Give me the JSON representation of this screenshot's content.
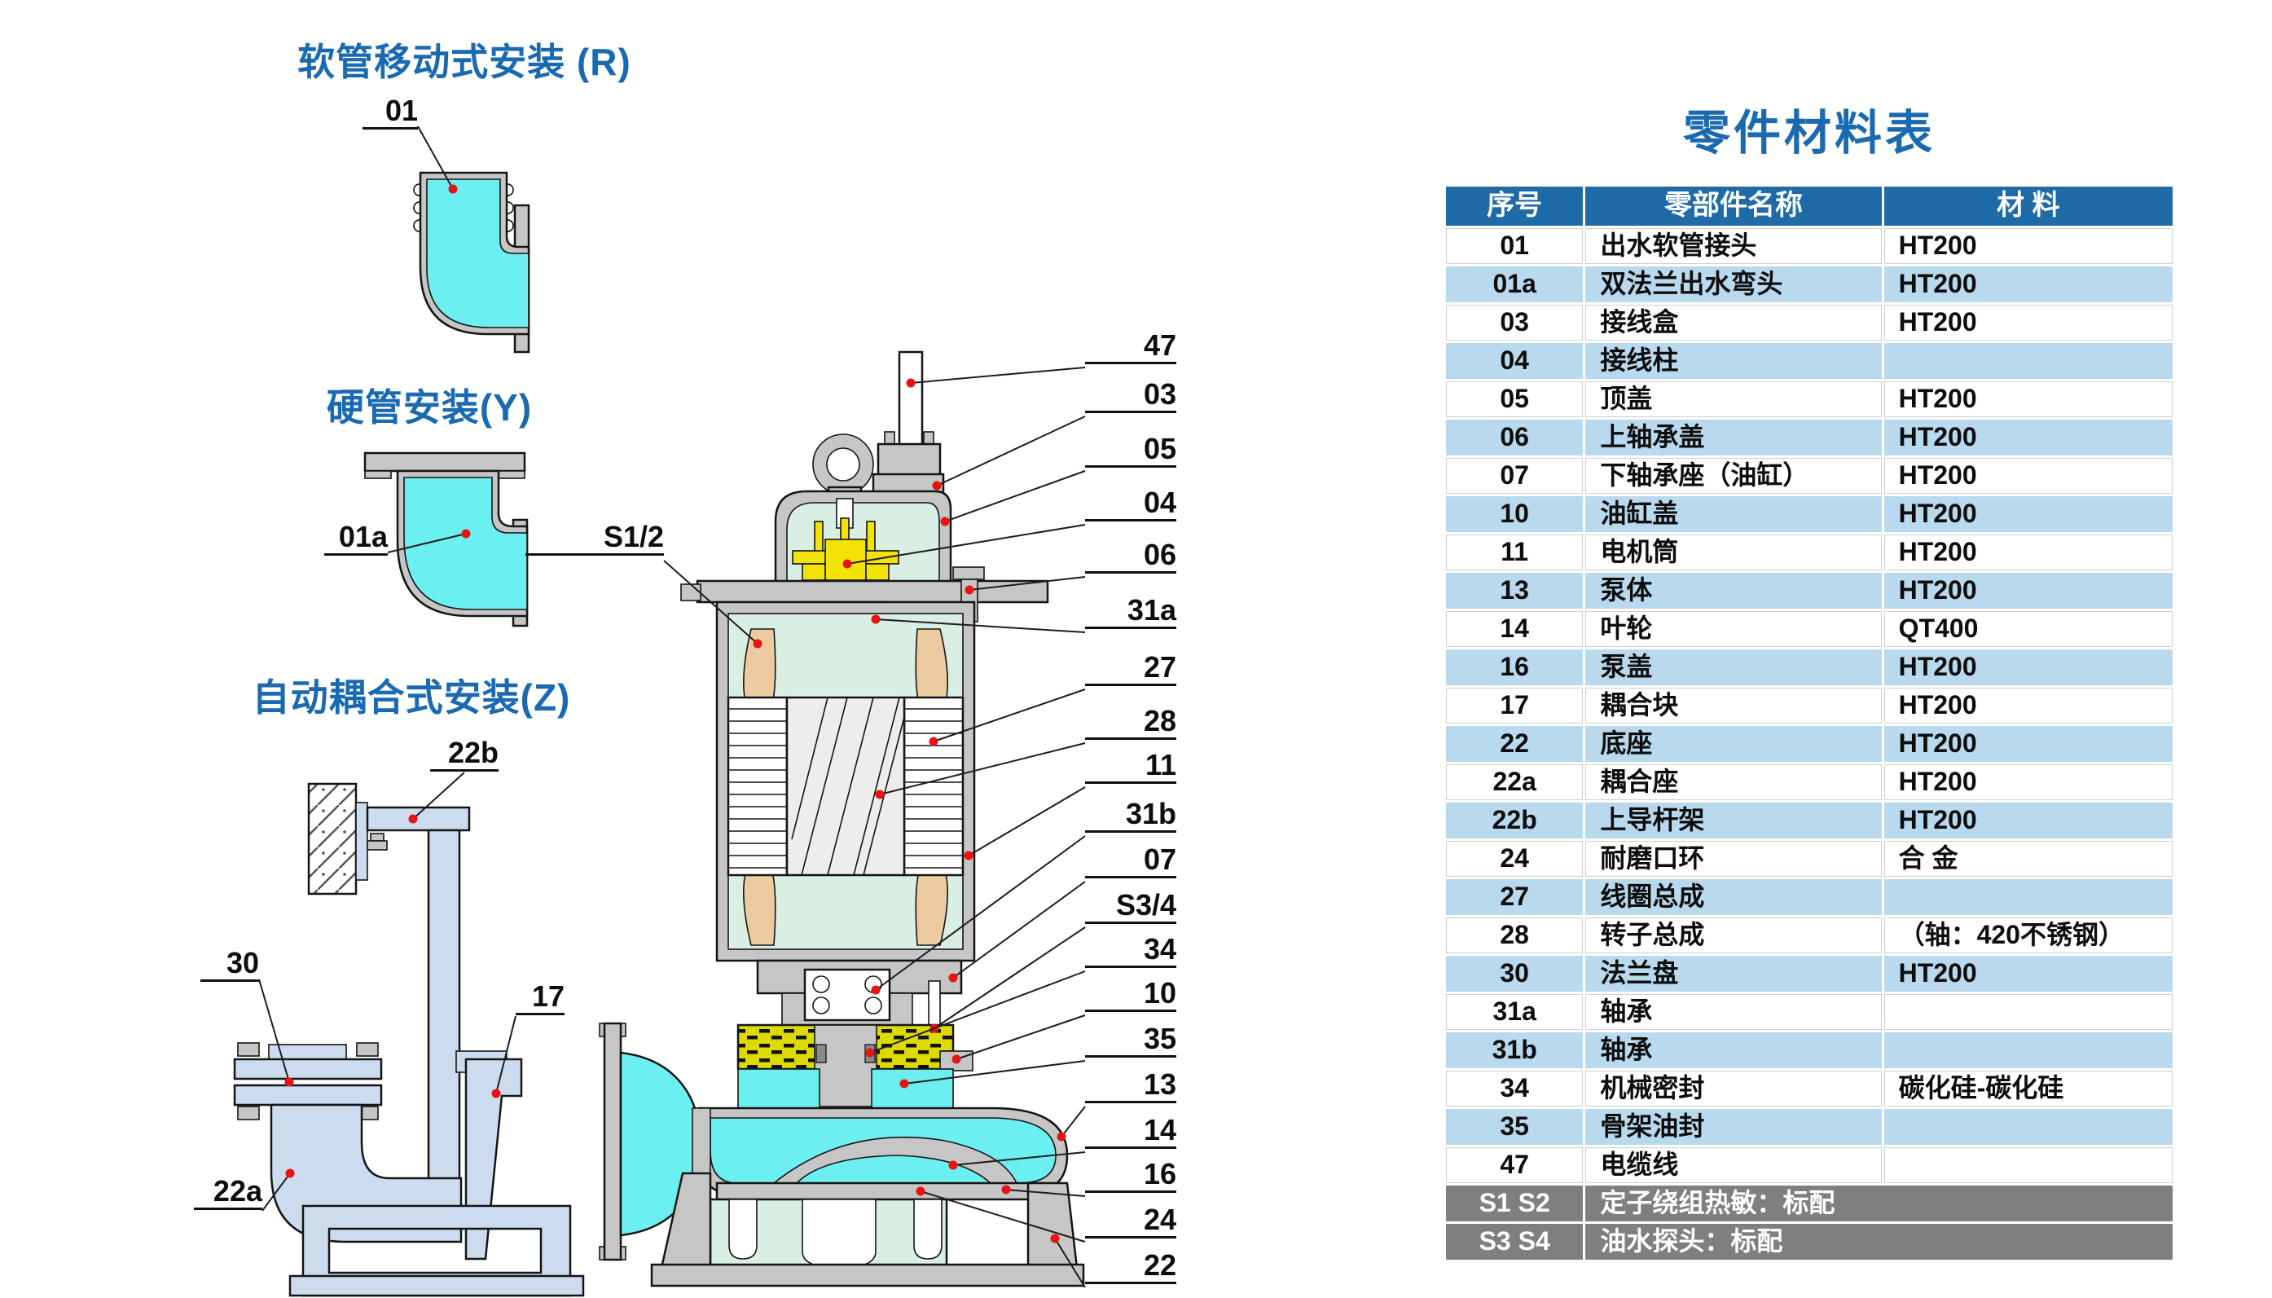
{
  "colors": {
    "accent": "#1a6ab2",
    "headerbg": "#1e6ba8",
    "rowalt": "#b9d9ee",
    "footergray": "#7f7f7f",
    "cyan": "#6ceff0",
    "mint": "#d9efe4",
    "metal": "#c6c6c6",
    "lightblue": "#ccdcee",
    "tan": "#eccba1",
    "yellow": "#f2e205",
    "oil": "#ddda00",
    "red": "#e81313",
    "line": "#141414"
  },
  "install_diagrams": [
    {
      "id": "hose",
      "title": "软管移动式安装 (R)",
      "labels": [
        "01"
      ]
    },
    {
      "id": "rigid",
      "title": "硬管安装(Y)",
      "labels": [
        "01a"
      ]
    },
    {
      "id": "autocoupling",
      "title": "自动耦合式安装(Z)",
      "labels": [
        "22b",
        "30",
        "17",
        "22a"
      ]
    }
  ],
  "pump_diagram": {
    "left_callouts": [
      "S1/2"
    ],
    "right_callouts": [
      "47",
      "03",
      "05",
      "04",
      "06",
      "31a",
      "27",
      "28",
      "11",
      "31b",
      "07",
      "S3/4",
      "34",
      "10",
      "35",
      "13",
      "14",
      "16",
      "24",
      "22"
    ]
  },
  "parts_table": {
    "title": "零件材料表",
    "headers": [
      "序号",
      "零部件名称",
      "材 料"
    ],
    "rows": [
      {
        "no": "01",
        "name": "出水软管接头",
        "material": "HT200"
      },
      {
        "no": "01a",
        "name": "双法兰出水弯头",
        "material": "HT200"
      },
      {
        "no": "03",
        "name": "接线盒",
        "material": "HT200"
      },
      {
        "no": "04",
        "name": "接线柱",
        "material": ""
      },
      {
        "no": "05",
        "name": "顶盖",
        "material": "HT200"
      },
      {
        "no": "06",
        "name": "上轴承盖",
        "material": "HT200"
      },
      {
        "no": "07",
        "name": "下轴承座（油缸）",
        "material": "HT200"
      },
      {
        "no": "10",
        "name": "油缸盖",
        "material": "HT200"
      },
      {
        "no": "11",
        "name": "电机筒",
        "material": "HT200"
      },
      {
        "no": "13",
        "name": "泵体",
        "material": "HT200"
      },
      {
        "no": "14",
        "name": "叶轮",
        "material": "QT400"
      },
      {
        "no": "16",
        "name": "泵盖",
        "material": "HT200"
      },
      {
        "no": "17",
        "name": "耦合块",
        "material": "HT200"
      },
      {
        "no": "22",
        "name": "底座",
        "material": "HT200"
      },
      {
        "no": "22a",
        "name": "耦合座",
        "material": "HT200"
      },
      {
        "no": "22b",
        "name": "上导杆架",
        "material": "HT200"
      },
      {
        "no": "24",
        "name": "耐磨口环",
        "material": "合 金"
      },
      {
        "no": "27",
        "name": "线圈总成",
        "material": ""
      },
      {
        "no": "28",
        "name": "转子总成",
        "material": "（轴：420不锈钢）"
      },
      {
        "no": "30",
        "name": "法兰盘",
        "material": "HT200"
      },
      {
        "no": "31a",
        "name": "轴承",
        "material": ""
      },
      {
        "no": "31b",
        "name": "轴承",
        "material": ""
      },
      {
        "no": "34",
        "name": "机械密封",
        "material": "碳化硅-碳化硅"
      },
      {
        "no": "35",
        "name": "骨架油封",
        "material": ""
      },
      {
        "no": "47",
        "name": "电缆线",
        "material": ""
      }
    ],
    "footer_rows": [
      {
        "no": "S1 S2",
        "text": "定子绕组热敏：标配"
      },
      {
        "no": "S3 S4",
        "text": "油水探头：标配"
      }
    ]
  }
}
